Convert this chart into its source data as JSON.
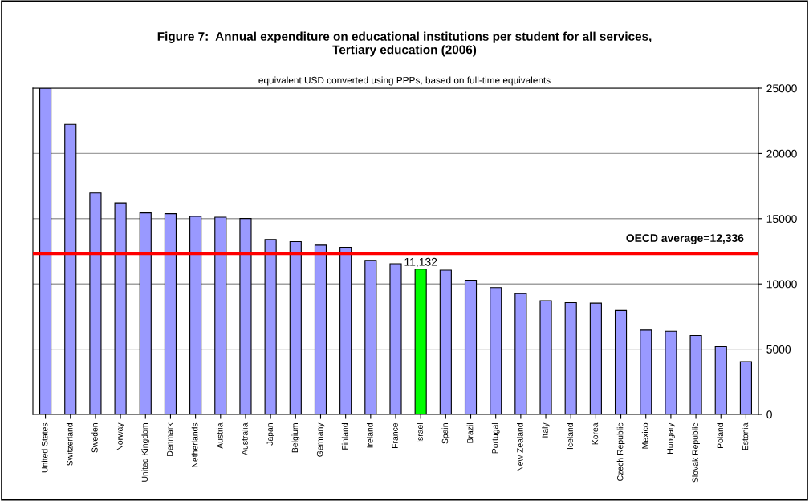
{
  "chart_data": {
    "type": "bar",
    "title": "Figure 7:  Annual expenditure on educational institutions per student for all services,\nTertiary education (2006)",
    "subtitle": "equivalent USD converted using PPPs, based on full-time equivalents",
    "categories": [
      "United States",
      "Switzerland",
      "Sweden",
      "Norway",
      "United Kingdom",
      "Denmark",
      "Netherlands",
      "Austria",
      "Australia",
      "Japan",
      "Belgium",
      "Germany",
      "Finland",
      "Ireland",
      "France",
      "Israel",
      "Spain",
      "Brazil",
      "Portugal",
      "New Zealand",
      "Italy",
      "Iceland",
      "Korea",
      "Czech Republic",
      "Mexico",
      "Hungary",
      "Slovak Republic",
      "Poland",
      "Estonia"
    ],
    "values": [
      25000,
      22220,
      16970,
      16210,
      15440,
      15380,
      15170,
      15110,
      15010,
      13400,
      13240,
      12970,
      12810,
      11810,
      11550,
      11132,
      11060,
      10290,
      9720,
      9270,
      8720,
      8570,
      8530,
      7960,
      6460,
      6370,
      6050,
      5190,
      4050
    ],
    "colors": [
      "#9999ff",
      "#9999ff",
      "#9999ff",
      "#9999ff",
      "#9999ff",
      "#9999ff",
      "#9999ff",
      "#9999ff",
      "#9999ff",
      "#9999ff",
      "#9999ff",
      "#9999ff",
      "#9999ff",
      "#9999ff",
      "#9999ff",
      "#00ff00",
      "#9999ff",
      "#9999ff",
      "#9999ff",
      "#9999ff",
      "#9999ff",
      "#9999ff",
      "#9999ff",
      "#9999ff",
      "#9999ff",
      "#9999ff",
      "#9999ff",
      "#9999ff",
      "#9999ff"
    ],
    "value_labels": [
      null,
      null,
      null,
      null,
      null,
      null,
      null,
      null,
      null,
      null,
      null,
      null,
      null,
      null,
      null,
      "11,132",
      null,
      null,
      null,
      null,
      null,
      null,
      null,
      null,
      null,
      null,
      null,
      null,
      null
    ],
    "ylim": [
      0,
      25000
    ],
    "yticks": [
      0,
      5000,
      10000,
      15000,
      20000,
      25000
    ],
    "grid": "y",
    "ref_lines": [
      {
        "axis": "y",
        "value": 12336,
        "label": "OECD average=12,336",
        "color": "#ff0000"
      }
    ]
  }
}
